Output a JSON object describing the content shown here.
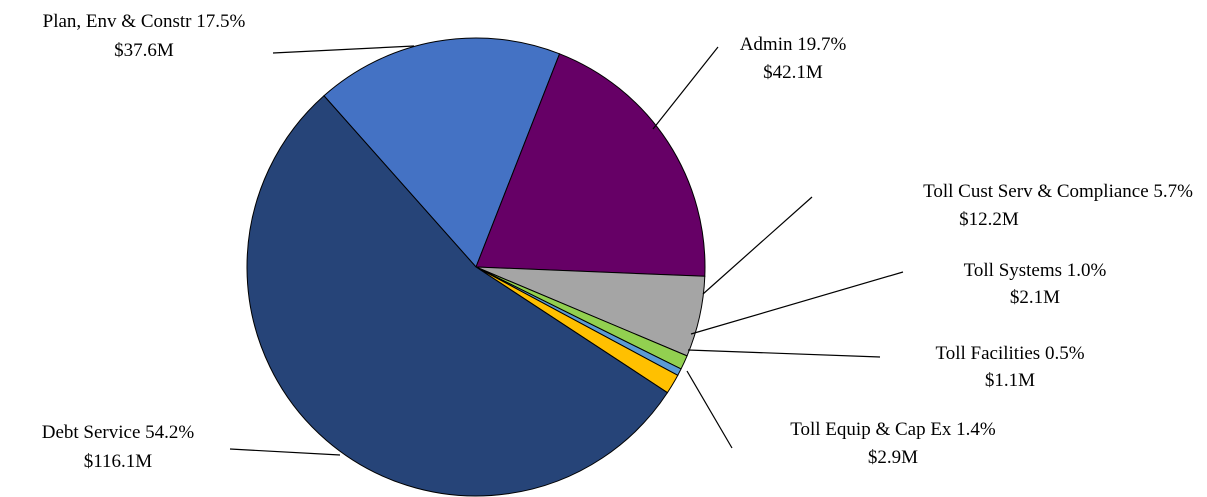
{
  "chart_data": {
    "type": "pie",
    "title": "",
    "slices": [
      {
        "name": "Debt Service",
        "percent": 54.2,
        "percent_label": "54.2%",
        "amount_label": "$116.1M",
        "value_millions": 116.1,
        "color": "#264478"
      },
      {
        "name": "Plan, Env & Constr",
        "percent": 17.5,
        "percent_label": "17.5%",
        "amount_label": "$37.6M",
        "value_millions": 37.6,
        "color": "#4472C4"
      },
      {
        "name": "Admin",
        "percent": 19.7,
        "percent_label": "19.7%",
        "amount_label": "$42.1M",
        "value_millions": 42.1,
        "color": "#660066"
      },
      {
        "name": "Toll Cust Serv & Compliance ",
        "percent": 5.7,
        "percent_label": "5.7%",
        "amount_label": "$12.2M",
        "value_millions": 12.2,
        "color": "#A5A5A5"
      },
      {
        "name": "Toll Systems",
        "percent": 1.0,
        "percent_label": "1.0%",
        "amount_label": "$2.1M",
        "value_millions": 2.1,
        "color": "#92D050"
      },
      {
        "name": "Toll Facilities",
        "percent": 0.5,
        "percent_label": "0.5%",
        "amount_label": "$1.1M",
        "value_millions": 1.1,
        "color": "#5B9BD5"
      },
      {
        "name": "Toll Equip & Cap Ex",
        "percent": 1.4,
        "percent_label": "1.4%",
        "amount_label": "$2.9M",
        "value_millions": 2.9,
        "color": "#FFC000"
      }
    ],
    "legend": "none",
    "label_style": "outside with leader lines"
  }
}
